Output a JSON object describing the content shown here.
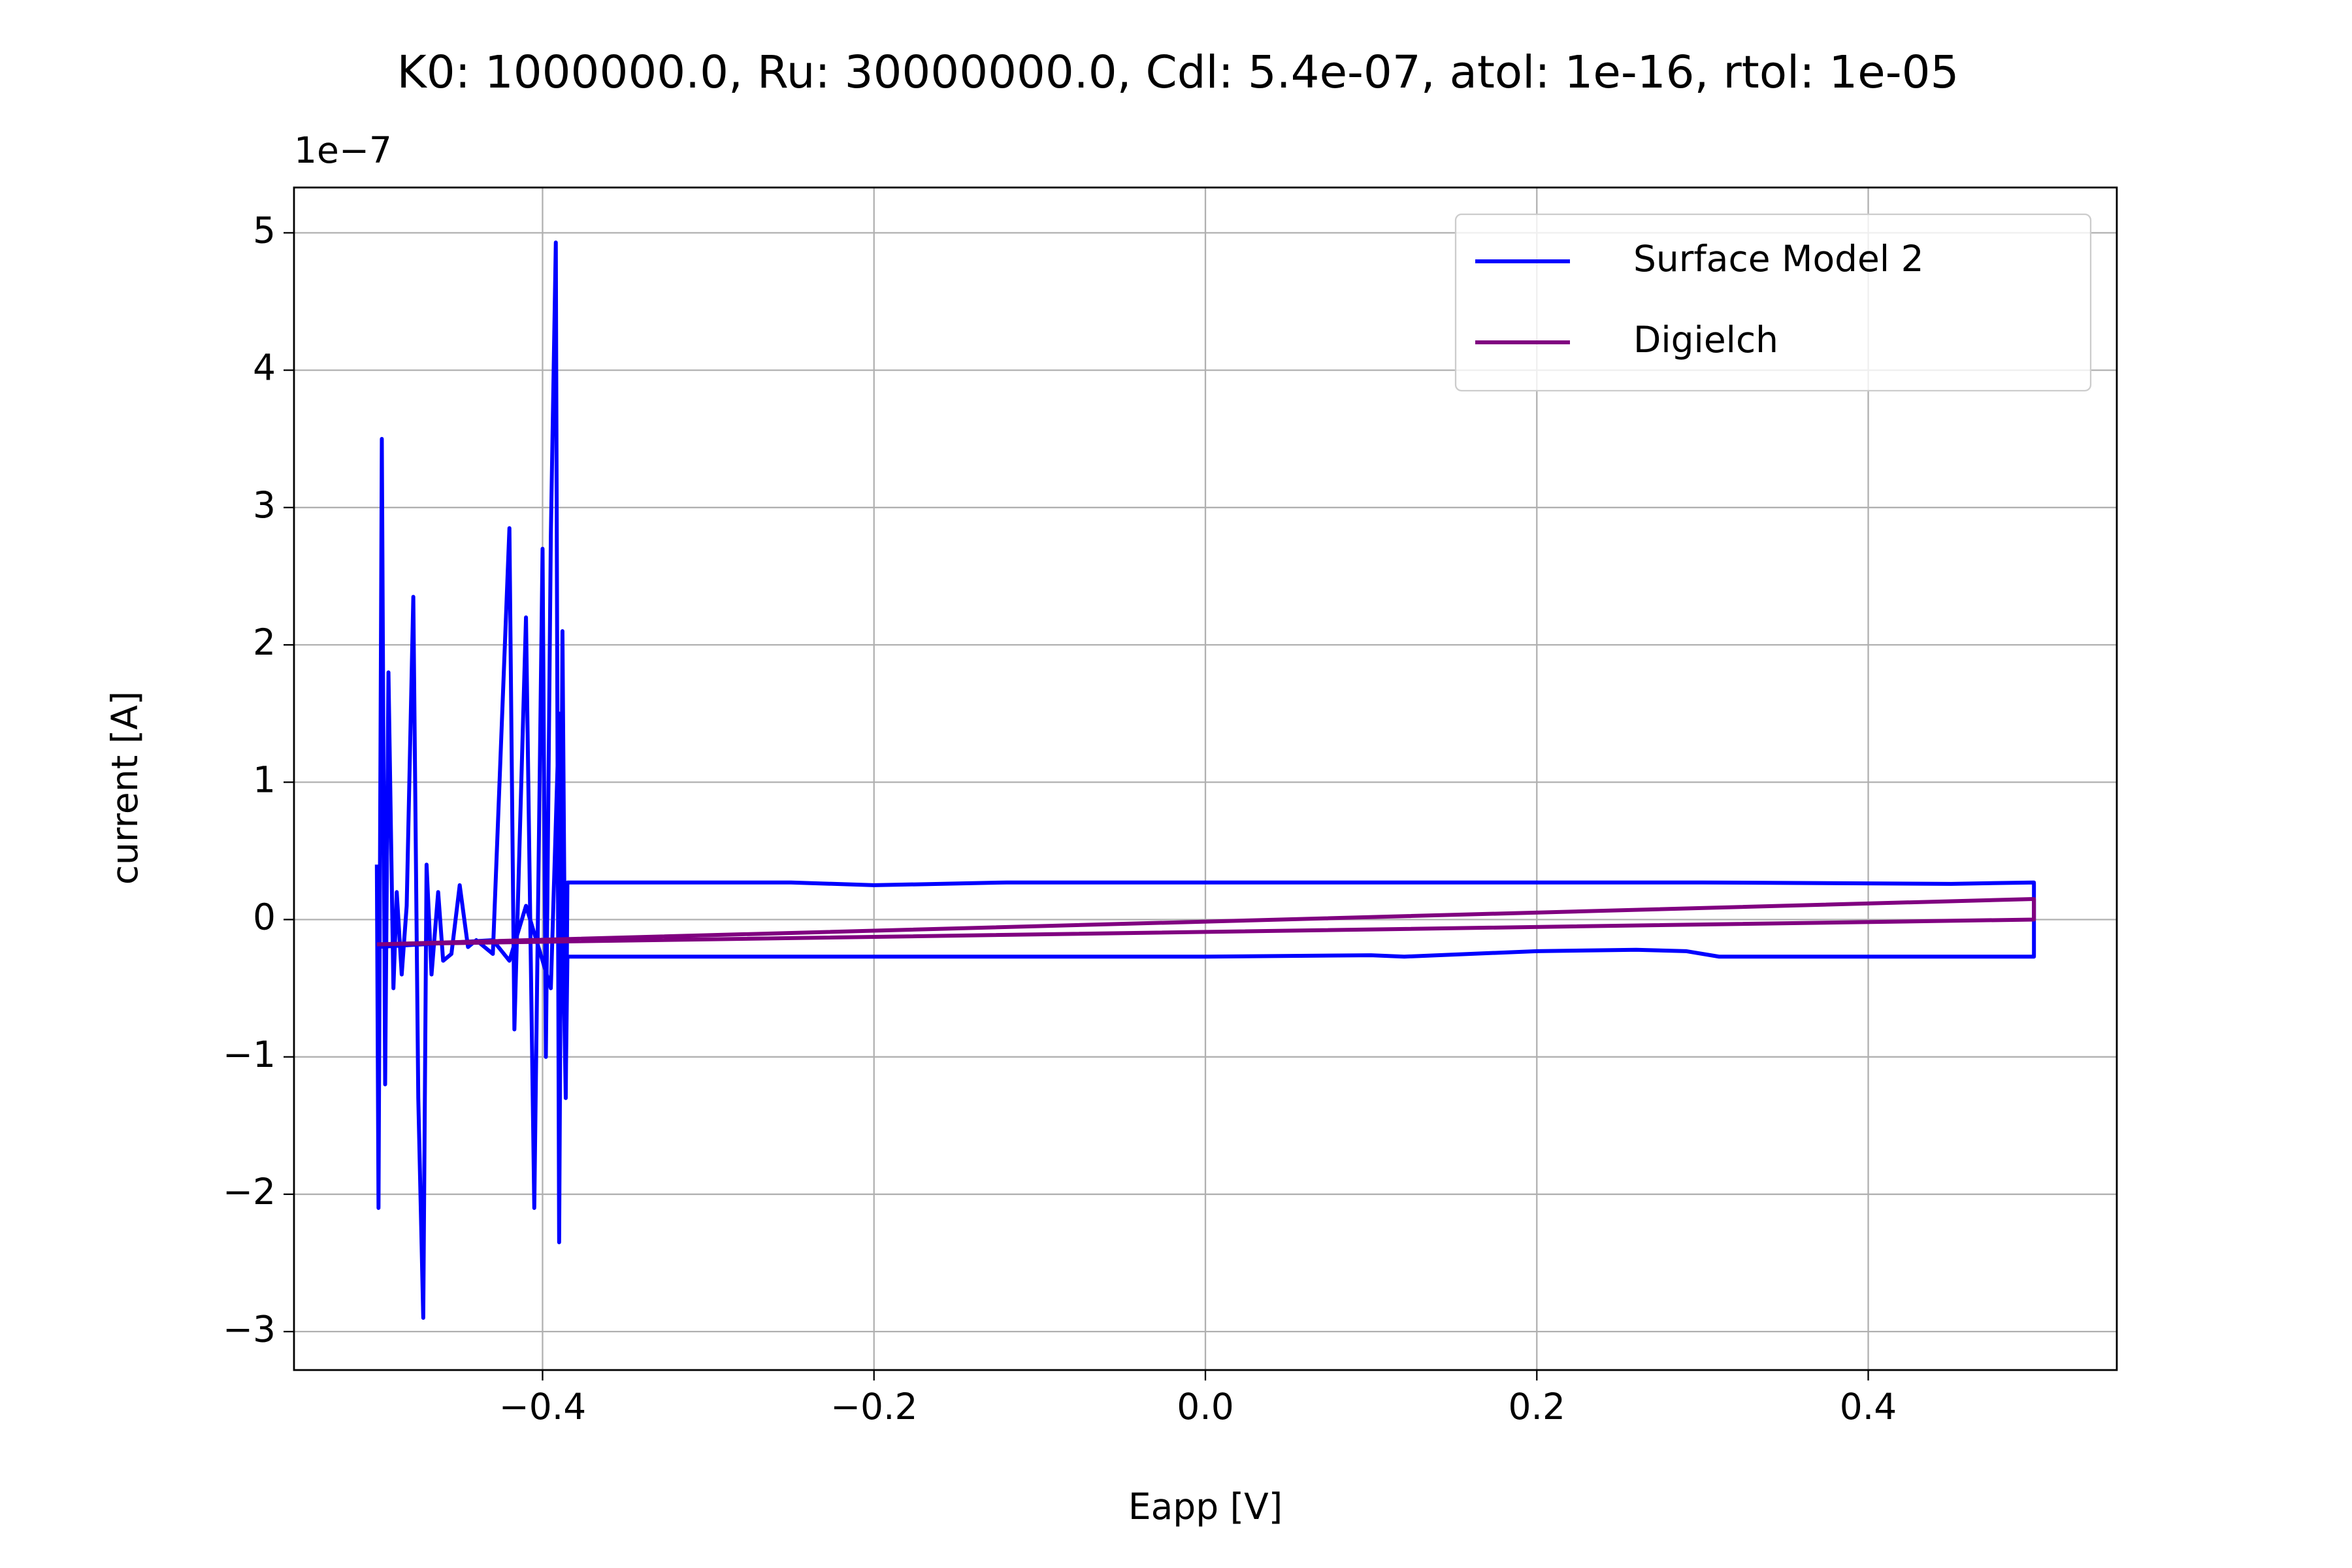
{
  "chart_data": {
    "type": "line",
    "title": "K0: 1000000.0, Ru: 30000000.0, Cdl: 5.4e-07, atol: 1e-16, rtol: 1e-05",
    "x_label": "Eapp [V]",
    "y_label": "current [A]",
    "y_offset_text": "1e−7",
    "xlim": [
      -0.55,
      0.55
    ],
    "ylim": [
      -3.28,
      5.33
    ],
    "xticks": [
      {
        "value": -0.4,
        "label": "−0.4"
      },
      {
        "value": -0.2,
        "label": "−0.2"
      },
      {
        "value": 0,
        "label": "0.0"
      },
      0.2,
      0.4
    ],
    "yticks": [
      {
        "value": -3,
        "label": "−3"
      },
      {
        "value": -2,
        "label": "−2"
      },
      {
        "value": -1,
        "label": "−1"
      },
      0,
      1,
      2,
      3,
      4,
      5
    ],
    "grid": true,
    "legend_position": "upper-right",
    "series": [
      {
        "name": "Surface Model 2",
        "color": "#0000ff",
        "x": [
          -0.5,
          -0.499,
          -0.497,
          -0.495,
          -0.493,
          -0.49,
          -0.488,
          -0.485,
          -0.482,
          -0.478,
          -0.475,
          -0.472,
          -0.47,
          -0.467,
          -0.463,
          -0.46,
          -0.455,
          -0.45,
          -0.445,
          -0.44,
          -0.43,
          -0.42,
          -0.417,
          -0.414,
          -0.41,
          -0.405,
          -0.4,
          -0.398,
          -0.395,
          -0.392,
          -0.39,
          -0.388,
          -0.386,
          -0.385,
          -0.3,
          0,
          0.1,
          0.12,
          0.2,
          0.26,
          0.29,
          0.31,
          0.5,
          0.5,
          0.45,
          0.3,
          0,
          -0.12,
          -0.2,
          -0.25,
          -0.385,
          -0.386,
          -0.39,
          -0.395,
          -0.4,
          -0.41,
          -0.42,
          -0.43,
          -0.5
        ],
        "values": [
          0.4,
          -2.1,
          3.5,
          -1.2,
          1.8,
          -0.5,
          0.2,
          -0.4,
          0.1,
          2.35,
          -1.3,
          -2.9,
          0.4,
          -0.4,
          0.2,
          -0.3,
          -0.25,
          0.25,
          -0.2,
          -0.15,
          -0.25,
          2.85,
          -0.8,
          0.5,
          2.2,
          -2.1,
          2.7,
          -1.0,
          2.8,
          4.93,
          -2.35,
          2.1,
          -1.2,
          -0.27,
          -0.27,
          -0.27,
          -0.26,
          -0.27,
          -0.23,
          -0.22,
          -0.23,
          -0.27,
          -0.27,
          0.27,
          0.26,
          0.27,
          0.27,
          0.27,
          0.25,
          0.27,
          0.27,
          -1.3,
          1.5,
          -0.5,
          -0.3,
          0.1,
          -0.3,
          -0.15,
          -0.2
        ]
      },
      {
        "name": "Digielch",
        "color": "#800080",
        "x": [
          -0.5,
          0.5,
          0.5,
          -0.5
        ],
        "values": [
          -0.18,
          0.15,
          0.0,
          -0.18
        ]
      }
    ]
  }
}
